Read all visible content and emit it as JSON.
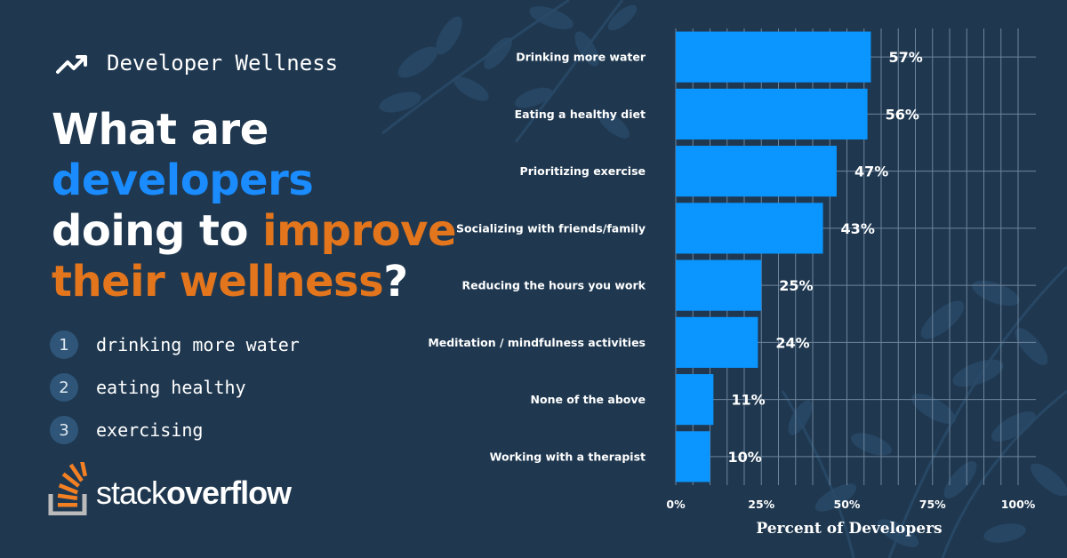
{
  "header": {
    "tag": "Developer Wellness",
    "trend_icon": "trending-up-icon"
  },
  "headline": {
    "part1": "What are ",
    "highlight1": "developers",
    "part2": " doing to ",
    "highlight2": "improve their wellness",
    "part3": "?"
  },
  "top_list": [
    {
      "num": "1",
      "text": "drinking more water"
    },
    {
      "num": "2",
      "text": "eating healthy"
    },
    {
      "num": "3",
      "text": "exercising"
    }
  ],
  "logo": {
    "icon": "stackoverflow-icon",
    "part1": "stack",
    "part2": "overflow"
  },
  "colors": {
    "background": "#1f3850",
    "bar": "#0a95ff",
    "accent_blue": "#1a8cff",
    "accent_orange": "#e3751c",
    "grid": "#6f859b"
  },
  "chart_data": {
    "type": "bar",
    "orientation": "horizontal",
    "categories": [
      "Drinking more water",
      "Eating a healthy diet",
      "Prioritizing exercise",
      "Socializing with friends/family",
      "Reducing the hours you work",
      "Meditation /  mindfulness activities",
      "None of the above",
      "Working with a therapist"
    ],
    "values": [
      57,
      56,
      47,
      43,
      25,
      24,
      11,
      10
    ],
    "value_labels": [
      "57%",
      "56%",
      "47%",
      "43%",
      "25%",
      "24%",
      "11%",
      "10%"
    ],
    "xticks": [
      0,
      25,
      50,
      75,
      100
    ],
    "xtick_labels": [
      "0%",
      "25%",
      "50%",
      "75%",
      "100%"
    ],
    "xlim": [
      0,
      100
    ],
    "xlabel": "Percent of Developers",
    "grid": true
  }
}
